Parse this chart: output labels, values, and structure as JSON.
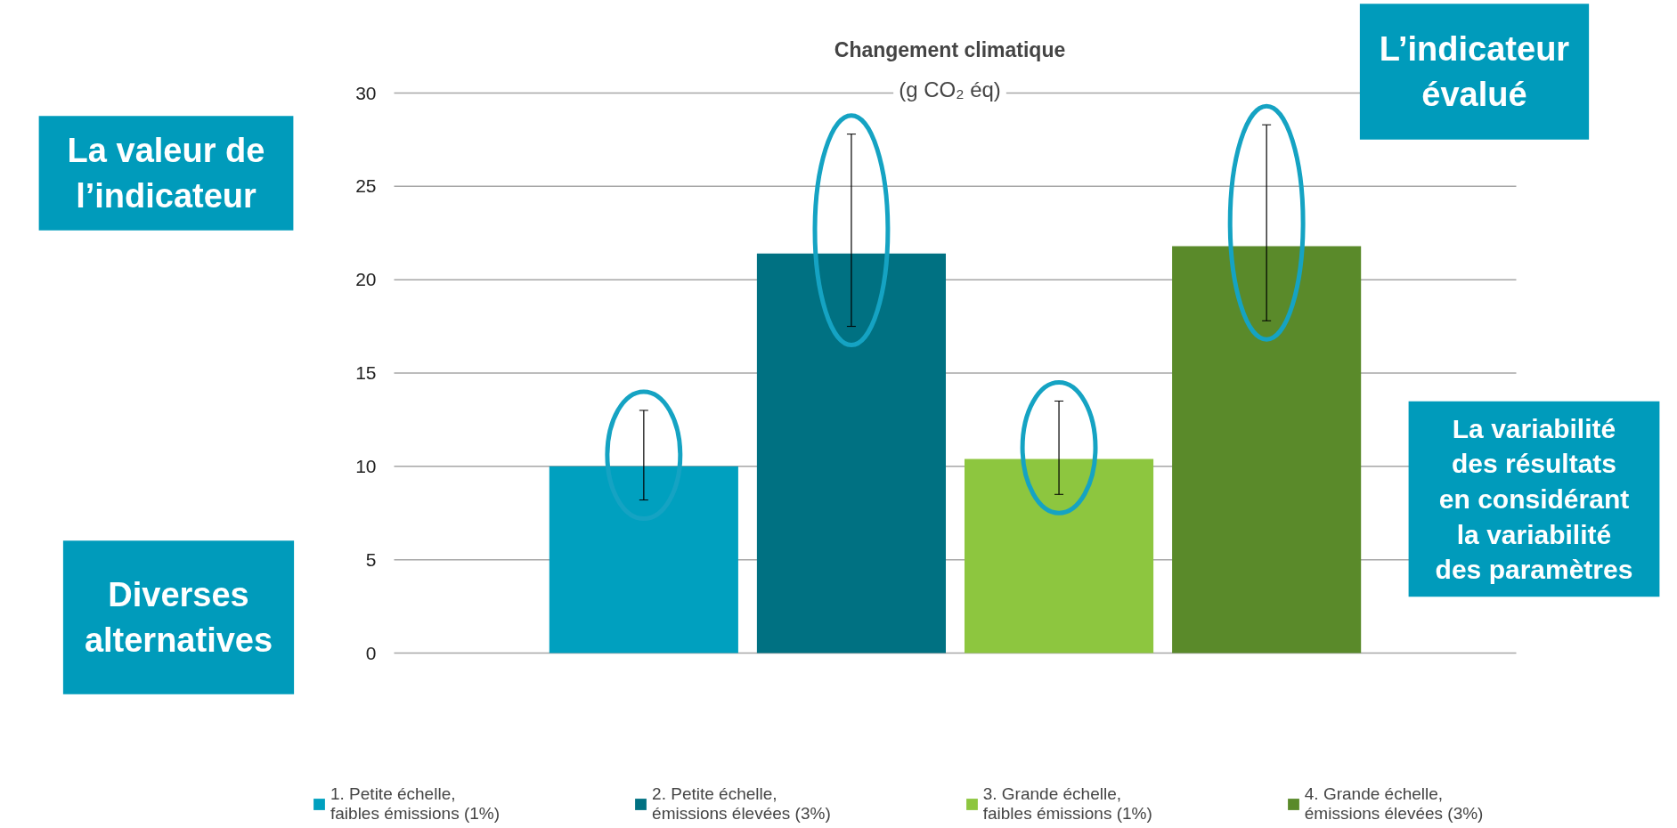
{
  "chart_data": {
    "type": "bar",
    "title": "Changement climatique",
    "subtitle": "(g CO₂ éq)",
    "categories": [
      null
    ],
    "series": [
      {
        "name": "1. Petite échelle, faibles émissions (1%)",
        "color": "#00a0bf",
        "values": [
          10.0
        ],
        "errors": [
          [
            8.2,
            13.0
          ]
        ]
      },
      {
        "name": "2. Petite échelle, émissions élevées (3%)",
        "color": "#007182",
        "values": [
          21.4
        ],
        "errors": [
          [
            17.5,
            27.8
          ]
        ]
      },
      {
        "name": "3. Grande échelle, faibles émissions (1%)",
        "color": "#8dc63f",
        "values": [
          10.4
        ],
        "errors": [
          [
            8.5,
            13.5
          ]
        ]
      },
      {
        "name": "4. Grande échelle, émissions élevées (3%)",
        "color": "#5a8a2a",
        "values": [
          21.8
        ],
        "errors": [
          [
            17.8,
            28.3
          ]
        ]
      }
    ],
    "ylim": [
      0,
      30
    ],
    "yticks": [
      0,
      5,
      10,
      15,
      20,
      25,
      30
    ],
    "grid": "y",
    "legend": "bottom",
    "tick_labels": "y",
    "annotations": [
      "La valeur de l’indicateur",
      "L’indicateur évalué",
      "La variabilité des résultats en considérant la variabilité des paramètres",
      "Diverses alternatives"
    ]
  }
}
